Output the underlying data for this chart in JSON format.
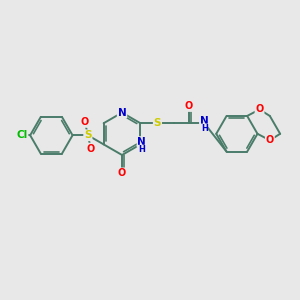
{
  "bg_color": "#e8e8e8",
  "bond_color": "#4a7c6a",
  "bond_width": 1.4,
  "atom_colors": {
    "N": "#0000cc",
    "O": "#ff0000",
    "S": "#cccc00",
    "Cl": "#00bb00",
    "C": "#4a7c6a",
    "H": "#4a7c6a"
  },
  "fs": 7.5,
  "fss": 6.0
}
